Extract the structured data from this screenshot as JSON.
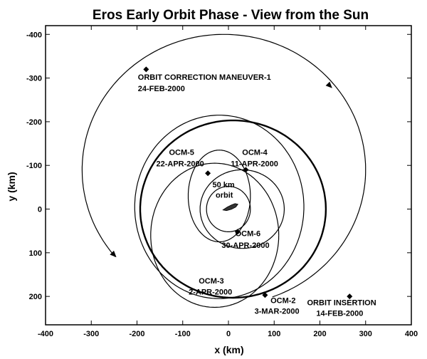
{
  "chart_data": {
    "type": "line",
    "title": "Eros Early Orbit Phase - View from the Sun",
    "xlabel": "x (km)",
    "ylabel": "y (km)",
    "xlim": [
      -400,
      400
    ],
    "ylim": [
      -420,
      265
    ],
    "y_inverted": true,
    "x_ticks": [
      "-400",
      "-300",
      "-200",
      "-100",
      "0",
      "100",
      "200",
      "300",
      "400"
    ],
    "y_ticks": [
      "-400",
      "-300",
      "-200",
      "-100",
      "0",
      "100",
      "200"
    ],
    "x_tick_values": [
      -400,
      -300,
      -200,
      -100,
      0,
      100,
      200,
      300,
      400
    ],
    "y_tick_values": [
      -400,
      -300,
      -200,
      -100,
      0,
      100,
      200
    ],
    "grid": false,
    "series": [
      {
        "center": [
          -10,
          -90
        ],
        "rx": 310,
        "ry": 310,
        "from": 140,
        "to": 430,
        "thickness": 1.2
      },
      {
        "center": [
          10,
          0
        ],
        "rx": 203,
        "ry": 203,
        "from": 0,
        "to": 360,
        "thickness": 2.4
      },
      {
        "center": [
          -20,
          -5
        ],
        "rx": 185,
        "ry": 210,
        "from": 0,
        "to": 360,
        "thickness": 1.2
      },
      {
        "center": [
          -30,
          60
        ],
        "rx": 140,
        "ry": 165,
        "from": 0,
        "to": 360,
        "thickness": 1.2
      },
      {
        "center": [
          -20,
          -30
        ],
        "rx": 68,
        "ry": 105,
        "from": 0,
        "to": 360,
        "thickness": 1.2
      },
      {
        "center": [
          30,
          0
        ],
        "rx": 92,
        "ry": 90,
        "from": 0,
        "to": 360,
        "thickness": 1.2
      },
      {
        "center": [
          0,
          0
        ],
        "rx": 48,
        "ry": 52,
        "from": 0,
        "to": 360,
        "thickness": 1.2
      }
    ],
    "markers": [
      {
        "x": -180,
        "y": -320
      },
      {
        "x": 265,
        "y": 200
      },
      {
        "x": 80,
        "y": 197
      },
      {
        "x": -45,
        "y": -82
      },
      {
        "x": 38,
        "y": -90
      },
      {
        "x": 20,
        "y": 52
      }
    ],
    "arrows": [
      {
        "x": 222,
        "y": -282,
        "dx": 1,
        "dy": 1
      },
      {
        "x": -250,
        "y": 105,
        "dx": 1,
        "dy": 1
      }
    ],
    "annotations": [
      {
        "text": "ORBIT CORRECTION MANEUVER-1",
        "x": -198,
        "y": -296
      },
      {
        "text": "24-FEB-2000",
        "x": -198,
        "y": -270
      },
      {
        "text": "OCM-5",
        "x": -130,
        "y": -124
      },
      {
        "text": "22-APR-2000",
        "x": -158,
        "y": -98
      },
      {
        "text": "OCM-4",
        "x": 30,
        "y": -124
      },
      {
        "text": "11-APR-2000",
        "x": 5,
        "y": -98
      },
      {
        "text": "50 km",
        "x": -35,
        "y": -50
      },
      {
        "text": "orbit",
        "x": -28,
        "y": -26
      },
      {
        "text": "OCM-6",
        "x": 15,
        "y": 62
      },
      {
        "text": "30-APR-2000",
        "x": -15,
        "y": 89
      },
      {
        "text": "OCM-3",
        "x": -65,
        "y": 170
      },
      {
        "text": "2-APR-2000",
        "x": -87,
        "y": 196
      },
      {
        "text": "OCM-2",
        "x": 92,
        "y": 215
      },
      {
        "text": "3-MAR-2000",
        "x": 57,
        "y": 240
      },
      {
        "text": "ORBIT INSERTION",
        "x": 172,
        "y": 220
      },
      {
        "text": "14-FEB-2000",
        "x": 192,
        "y": 245
      }
    ]
  }
}
